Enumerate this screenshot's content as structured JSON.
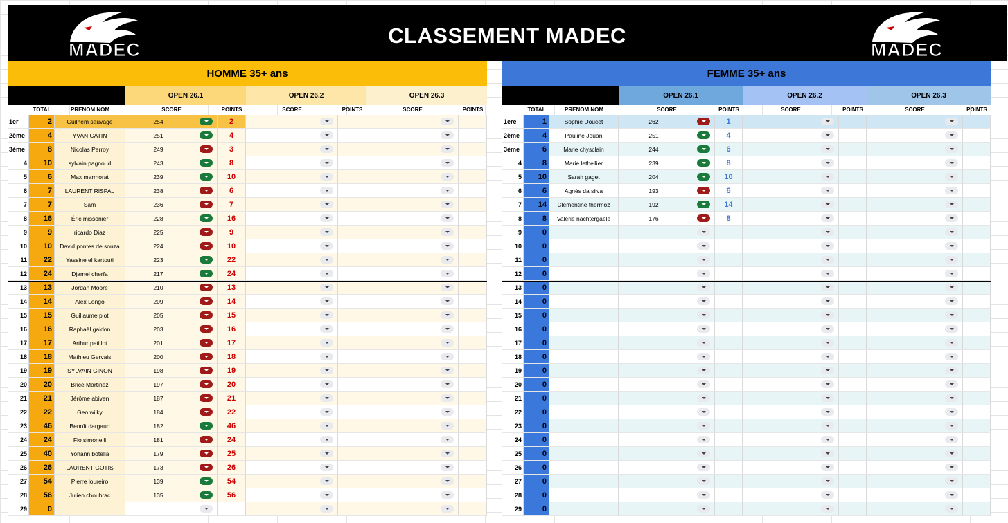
{
  "title": "CLASSEMENT MADEC",
  "logo_text": "MADEC",
  "colors": {
    "men_header": "#fbbd07",
    "men_open1": "#fdd87a",
    "men_open2": "#fde6a8",
    "men_open3": "#fdf0cc",
    "men_total": "#f6a90f",
    "men_name": "#fdf2d3",
    "men_score": "#fff8e6",
    "women_header": "#3d78d8",
    "women_open1": "#6ea8dc",
    "women_open2": "#a4c2f4",
    "women_open3": "#9fc5e8",
    "women_total": "#3b78db",
    "women_row": "#e7f5f7",
    "men_pts": "#cc0000",
    "women_pts": "#3d78d8"
  },
  "columns": {
    "total": "TOTAL",
    "name": "PRENOM NOM",
    "score": "SCORE",
    "points": "POINTS"
  },
  "opens": [
    "OPEN 26.1",
    "OPEN 26.2",
    "OPEN 26.3"
  ],
  "men": {
    "header": "HOMME 35+ ans",
    "rows": [
      {
        "rank": "1er",
        "total": "2",
        "name": "Guilhem sauvage",
        "score": "254",
        "pill": "green",
        "pts": "2"
      },
      {
        "rank": "2ème",
        "total": "4",
        "name": "YVAN CATIN",
        "score": "251",
        "pill": "green",
        "pts": "4"
      },
      {
        "rank": "3ème",
        "total": "8",
        "name": "Nicolas Perroy",
        "score": "249",
        "pill": "red",
        "pts": "3"
      },
      {
        "rank": "4",
        "total": "10",
        "name": "sylvain pagnoud",
        "score": "243",
        "pill": "green",
        "pts": "8"
      },
      {
        "rank": "5",
        "total": "6",
        "name": "Max marmorat",
        "score": "239",
        "pill": "green",
        "pts": "10"
      },
      {
        "rank": "6",
        "total": "7",
        "name": "LAURENT RISPAL",
        "score": "238",
        "pill": "red",
        "pts": "6"
      },
      {
        "rank": "7",
        "total": "7",
        "name": "Sam",
        "score": "236",
        "pill": "red",
        "pts": "7"
      },
      {
        "rank": "8",
        "total": "16",
        "name": "Éric missonier",
        "score": "228",
        "pill": "green",
        "pts": "16"
      },
      {
        "rank": "9",
        "total": "9",
        "name": "ricardo Diaz",
        "score": "225",
        "pill": "red",
        "pts": "9"
      },
      {
        "rank": "10",
        "total": "10",
        "name": "David pontes de souza",
        "score": "224",
        "pill": "red",
        "pts": "10"
      },
      {
        "rank": "11",
        "total": "22",
        "name": "Yassine el kartouti",
        "score": "223",
        "pill": "green",
        "pts": "22"
      },
      {
        "rank": "12",
        "total": "24",
        "name": "Djamel cherfa",
        "score": "217",
        "pill": "green",
        "pts": "24"
      },
      {
        "rank": "13",
        "total": "13",
        "name": "Jordan Moore",
        "score": "210",
        "pill": "red",
        "pts": "13"
      },
      {
        "rank": "14",
        "total": "14",
        "name": "Alex Longo",
        "score": "209",
        "pill": "red",
        "pts": "14"
      },
      {
        "rank": "15",
        "total": "15",
        "name": "Guillaume piot",
        "score": "205",
        "pill": "red",
        "pts": "15"
      },
      {
        "rank": "16",
        "total": "16",
        "name": "Raphaël gaidon",
        "score": "203",
        "pill": "red",
        "pts": "16"
      },
      {
        "rank": "17",
        "total": "17",
        "name": "Arthur petillot",
        "score": "201",
        "pill": "red",
        "pts": "17"
      },
      {
        "rank": "18",
        "total": "18",
        "name": "Mathieu Gervais",
        "score": "200",
        "pill": "red",
        "pts": "18"
      },
      {
        "rank": "19",
        "total": "19",
        "name": "SYLVAIN GINON",
        "score": "198",
        "pill": "red",
        "pts": "19"
      },
      {
        "rank": "20",
        "total": "20",
        "name": "Brice Martinez",
        "score": "197",
        "pill": "red",
        "pts": "20"
      },
      {
        "rank": "21",
        "total": "21",
        "name": "Jérôme abiven",
        "score": "187",
        "pill": "red",
        "pts": "21"
      },
      {
        "rank": "22",
        "total": "22",
        "name": "Geo wilky",
        "score": "184",
        "pill": "red",
        "pts": "22"
      },
      {
        "rank": "23",
        "total": "46",
        "name": "Benoît dargaud",
        "score": "182",
        "pill": "green",
        "pts": "46"
      },
      {
        "rank": "24",
        "total": "24",
        "name": "Flo simonelli",
        "score": "181",
        "pill": "red",
        "pts": "24"
      },
      {
        "rank": "25",
        "total": "40",
        "name": "Yohann botella",
        "score": "179",
        "pill": "red",
        "pts": "25"
      },
      {
        "rank": "26",
        "total": "26",
        "name": "LAURENT GOTIS",
        "score": "173",
        "pill": "red",
        "pts": "26"
      },
      {
        "rank": "27",
        "total": "54",
        "name": "Pierre loureiro",
        "score": "139",
        "pill": "green",
        "pts": "54"
      },
      {
        "rank": "28",
        "total": "56",
        "name": "Julien choubrac",
        "score": "135",
        "pill": "green",
        "pts": "56"
      },
      {
        "rank": "29",
        "total": "0",
        "name": "",
        "score": "",
        "pill": "empty",
        "pts": ""
      }
    ]
  },
  "women": {
    "header": "FEMME 35+ ans",
    "rows": [
      {
        "rank": "1ere",
        "total": "1",
        "name": "Sophie Doucet",
        "score": "262",
        "pill": "red",
        "pts": "1"
      },
      {
        "rank": "2ème",
        "total": "4",
        "name": "Pauline  Jouan",
        "score": "251",
        "pill": "green",
        "pts": "4"
      },
      {
        "rank": "3ème",
        "total": "6",
        "name": "Marie chysclain",
        "score": "244",
        "pill": "green",
        "pts": "6"
      },
      {
        "rank": "4",
        "total": "8",
        "name": "Marie lethellier",
        "score": "239",
        "pill": "green",
        "pts": "8"
      },
      {
        "rank": "5",
        "total": "10",
        "name": "Sarah gaget",
        "score": "204",
        "pill": "green",
        "pts": "10"
      },
      {
        "rank": "6",
        "total": "6",
        "name": "Agnès da silva",
        "score": "193",
        "pill": "red",
        "pts": "6"
      },
      {
        "rank": "7",
        "total": "14",
        "name": "Clementine thermoz",
        "score": "192",
        "pill": "green",
        "pts": "14"
      },
      {
        "rank": "8",
        "total": "8",
        "name": "Valérie nachtergaele",
        "score": "176",
        "pill": "red",
        "pts": "8"
      },
      {
        "rank": "9",
        "total": "0",
        "name": "",
        "score": "",
        "pill": "empty",
        "pts": ""
      },
      {
        "rank": "10",
        "total": "0",
        "name": "",
        "score": "",
        "pill": "empty",
        "pts": ""
      },
      {
        "rank": "11",
        "total": "0",
        "name": "",
        "score": "",
        "pill": "empty",
        "pts": ""
      },
      {
        "rank": "12",
        "total": "0",
        "name": "",
        "score": "",
        "pill": "empty",
        "pts": ""
      },
      {
        "rank": "13",
        "total": "0",
        "name": "",
        "score": "",
        "pill": "empty",
        "pts": ""
      },
      {
        "rank": "14",
        "total": "0",
        "name": "",
        "score": "",
        "pill": "empty",
        "pts": ""
      },
      {
        "rank": "15",
        "total": "0",
        "name": "",
        "score": "",
        "pill": "empty",
        "pts": ""
      },
      {
        "rank": "16",
        "total": "0",
        "name": "",
        "score": "",
        "pill": "empty",
        "pts": ""
      },
      {
        "rank": "17",
        "total": "0",
        "name": "",
        "score": "",
        "pill": "empty",
        "pts": ""
      },
      {
        "rank": "18",
        "total": "0",
        "name": "",
        "score": "",
        "pill": "empty",
        "pts": ""
      },
      {
        "rank": "19",
        "total": "0",
        "name": "",
        "score": "",
        "pill": "empty",
        "pts": ""
      },
      {
        "rank": "20",
        "total": "0",
        "name": "",
        "score": "",
        "pill": "empty",
        "pts": ""
      },
      {
        "rank": "21",
        "total": "0",
        "name": "",
        "score": "",
        "pill": "empty",
        "pts": ""
      },
      {
        "rank": "22",
        "total": "0",
        "name": "",
        "score": "",
        "pill": "empty",
        "pts": ""
      },
      {
        "rank": "23",
        "total": "0",
        "name": "",
        "score": "",
        "pill": "empty",
        "pts": ""
      },
      {
        "rank": "24",
        "total": "0",
        "name": "",
        "score": "",
        "pill": "empty",
        "pts": ""
      },
      {
        "rank": "25",
        "total": "0",
        "name": "",
        "score": "",
        "pill": "empty",
        "pts": ""
      },
      {
        "rank": "26",
        "total": "0",
        "name": "",
        "score": "",
        "pill": "empty",
        "pts": ""
      },
      {
        "rank": "27",
        "total": "0",
        "name": "",
        "score": "",
        "pill": "empty",
        "pts": ""
      },
      {
        "rank": "28",
        "total": "0",
        "name": "",
        "score": "",
        "pill": "empty",
        "pts": ""
      },
      {
        "rank": "29",
        "total": "0",
        "name": "",
        "score": "",
        "pill": "empty",
        "pts": ""
      }
    ]
  }
}
